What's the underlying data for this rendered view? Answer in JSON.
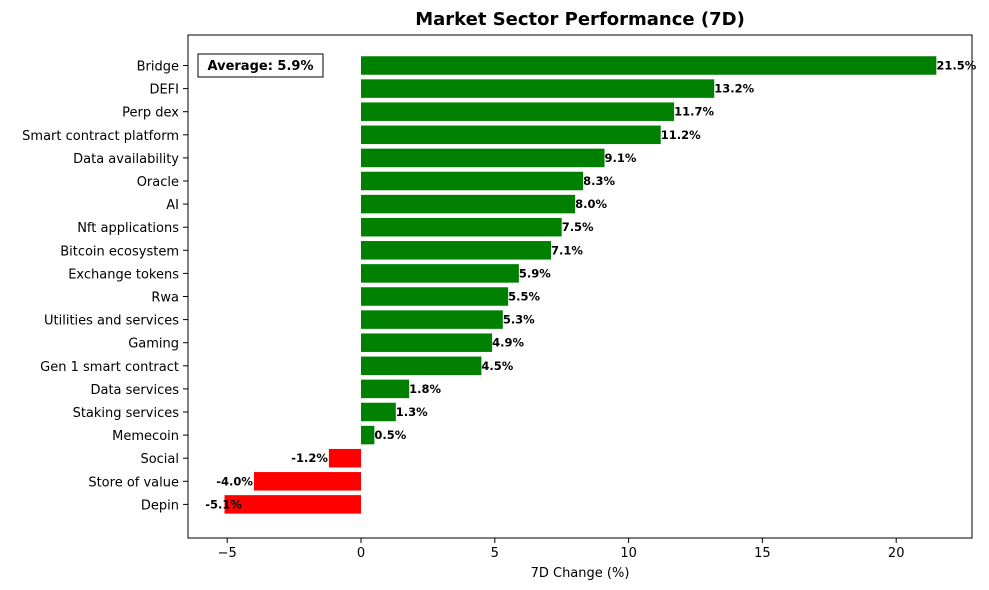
{
  "chart_data": {
    "type": "bar",
    "orientation": "horizontal",
    "title": "Market Sector Performance (7D)",
    "xlabel": "7D Change (%)",
    "ylabel": "",
    "xlim": [
      -6.4,
      23.2
    ],
    "x_ticks": [
      -5,
      0,
      5,
      10,
      15,
      20
    ],
    "x_tick_labels": [
      "−5",
      "0",
      "5",
      "10",
      "15",
      "20"
    ],
    "grid": false,
    "categories": [
      "Bridge",
      "DEFI",
      "Perp dex",
      "Smart contract platform",
      "Data availability",
      "Oracle",
      "AI",
      "Nft applications",
      "Bitcoin ecosystem",
      "Exchange tokens",
      "Rwa",
      "Utilities and services",
      "Gaming",
      "Gen 1 smart contract",
      "Data services",
      "Staking services",
      "Memecoin",
      "Social",
      "Store of value",
      "Depin"
    ],
    "values": [
      21.5,
      13.2,
      11.7,
      11.2,
      9.1,
      8.3,
      8.0,
      7.5,
      7.1,
      5.9,
      5.5,
      5.3,
      4.9,
      4.5,
      1.8,
      1.3,
      0.5,
      -1.2,
      -4.0,
      -5.1
    ],
    "value_labels": [
      "21.5%",
      "13.2%",
      "11.7%",
      "11.2%",
      "9.1%",
      "8.3%",
      "8.0%",
      "7.5%",
      "7.1%",
      "5.9%",
      "5.5%",
      "5.3%",
      "4.9%",
      "4.5%",
      "1.8%",
      "1.3%",
      "0.5%",
      "-1.2%",
      "-4.0%",
      "-5.1%"
    ],
    "annotation": "Average: 5.9%",
    "colors": {
      "positive": "#008000",
      "negative": "#ff0000"
    }
  }
}
